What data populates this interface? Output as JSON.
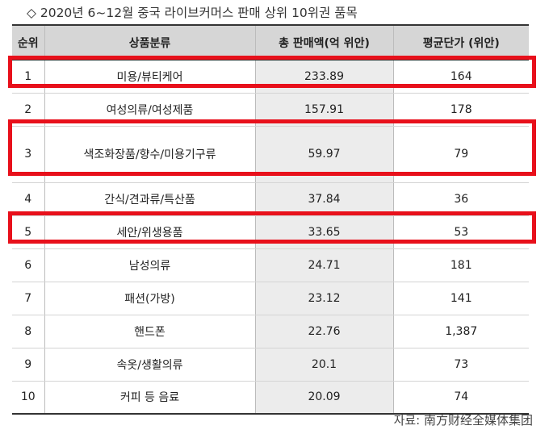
{
  "title": "◇ 2020년 6~12월 중국 라이브커머스 판매 상위 10위권 품목",
  "table": {
    "headers": [
      "순위",
      "상품분류",
      "총 판매액(억 위안)",
      "평균단가 (위안)"
    ],
    "rows": [
      {
        "rank": "1",
        "category": "미용/뷰티케어",
        "sales": "233.89",
        "price": "164"
      },
      {
        "rank": "2",
        "category": "여성의류/여성제품",
        "sales": "157.91",
        "price": "178"
      },
      {
        "rank": "3",
        "category": "색조화장품/향수/미용기구류",
        "sales": "59.97",
        "price": "79"
      },
      {
        "rank": "4",
        "category": "간식/견과류/특산품",
        "sales": "37.84",
        "price": "36"
      },
      {
        "rank": "5",
        "category": "세안/위생용품",
        "sales": "33.65",
        "price": "53"
      },
      {
        "rank": "6",
        "category": "남성의류",
        "sales": "24.71",
        "price": "181"
      },
      {
        "rank": "7",
        "category": "패션(가방)",
        "sales": "23.12",
        "price": "141"
      },
      {
        "rank": "8",
        "category": "핸드폰",
        "sales": "22.76",
        "price": "1,387"
      },
      {
        "rank": "9",
        "category": "속옷/생활의류",
        "sales": "20.1",
        "price": "73"
      },
      {
        "rank": "10",
        "category": "커피 등 음료",
        "sales": "20.09",
        "price": "74"
      }
    ],
    "highlighted_ranks": [
      "1",
      "3",
      "5"
    ]
  },
  "source": "자료: 南方财经全媒体集团",
  "colors": {
    "highlight": "#e8101b",
    "header_bg": "#d6d6d6",
    "sales_column_bg": "#ececec"
  }
}
